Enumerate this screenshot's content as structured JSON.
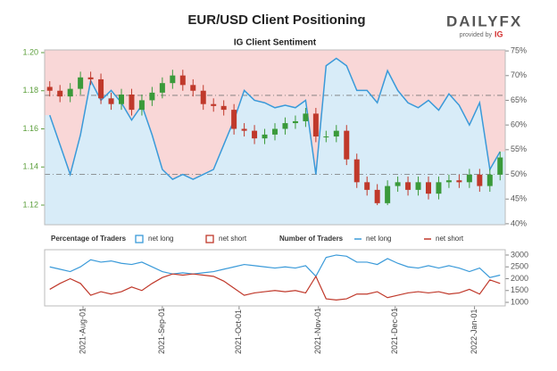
{
  "header": {
    "title": "EUR/USD Client Positioning",
    "logo": "DAILYFX",
    "provided_by": "provided by",
    "provider": "IG"
  },
  "chart_data": [
    {
      "type": "candlestick",
      "title": "IG Client Sentiment",
      "x": [
        "2021-Jul-19",
        "2021-Jul-23",
        "2021-Jul-27",
        "2021-Jul-31",
        "2021-Aug-04",
        "2021-Aug-08",
        "2021-Aug-12",
        "2021-Aug-16",
        "2021-Aug-20",
        "2021-Aug-24",
        "2021-Aug-28",
        "2021-Sep-01",
        "2021-Sep-05",
        "2021-Sep-09",
        "2021-Sep-13",
        "2021-Sep-17",
        "2021-Sep-21",
        "2021-Sep-25",
        "2021-Sep-29",
        "2021-Oct-03",
        "2021-Oct-07",
        "2021-Oct-11",
        "2021-Oct-15",
        "2021-Oct-19",
        "2021-Oct-23",
        "2021-Oct-27",
        "2021-Oct-31",
        "2021-Nov-04",
        "2021-Nov-08",
        "2021-Nov-12",
        "2021-Nov-16",
        "2021-Nov-20",
        "2021-Nov-24",
        "2021-Nov-28",
        "2021-Dec-02",
        "2021-Dec-06",
        "2021-Dec-10",
        "2021-Dec-14",
        "2021-Dec-18",
        "2021-Dec-22",
        "2021-Dec-26",
        "2021-Dec-30",
        "2022-Jan-03",
        "2022-Jan-07",
        "2022-Jan-11"
      ],
      "open": [
        1.182,
        1.18,
        1.177,
        1.181,
        1.187,
        1.186,
        1.176,
        1.173,
        1.178,
        1.17,
        1.175,
        1.179,
        1.184,
        1.188,
        1.183,
        1.18,
        1.173,
        1.172,
        1.17,
        1.16,
        1.159,
        1.155,
        1.157,
        1.16,
        1.163,
        1.164,
        1.168,
        1.156,
        1.156,
        1.159,
        1.144,
        1.132,
        1.128,
        1.121,
        1.13,
        1.132,
        1.128,
        1.132,
        1.126,
        1.132,
        1.133,
        1.132,
        1.136,
        1.13,
        1.136
      ],
      "high": [
        1.185,
        1.183,
        1.184,
        1.19,
        1.19,
        1.189,
        1.179,
        1.181,
        1.181,
        1.178,
        1.182,
        1.187,
        1.191,
        1.191,
        1.186,
        1.183,
        1.176,
        1.175,
        1.173,
        1.163,
        1.162,
        1.16,
        1.163,
        1.166,
        1.167,
        1.171,
        1.171,
        1.159,
        1.162,
        1.162,
        1.147,
        1.135,
        1.131,
        1.133,
        1.135,
        1.135,
        1.135,
        1.135,
        1.135,
        1.136,
        1.136,
        1.139,
        1.139,
        1.139,
        1.148
      ],
      "low": [
        1.177,
        1.174,
        1.174,
        1.178,
        1.183,
        1.173,
        1.17,
        1.17,
        1.167,
        1.167,
        1.172,
        1.176,
        1.181,
        1.18,
        1.177,
        1.17,
        1.169,
        1.167,
        1.157,
        1.156,
        1.152,
        1.152,
        1.154,
        1.157,
        1.16,
        1.161,
        1.153,
        1.153,
        1.153,
        1.141,
        1.129,
        1.125,
        1.12,
        1.12,
        1.127,
        1.125,
        1.125,
        1.123,
        1.123,
        1.129,
        1.129,
        1.129,
        1.127,
        1.127,
        1.133
      ],
      "close": [
        1.18,
        1.177,
        1.181,
        1.187,
        1.186,
        1.176,
        1.173,
        1.178,
        1.17,
        1.175,
        1.179,
        1.184,
        1.188,
        1.183,
        1.18,
        1.173,
        1.172,
        1.17,
        1.16,
        1.159,
        1.155,
        1.157,
        1.16,
        1.163,
        1.164,
        1.168,
        1.156,
        1.156,
        1.159,
        1.144,
        1.132,
        1.128,
        1.121,
        1.13,
        1.132,
        1.128,
        1.132,
        1.126,
        1.132,
        1.133,
        1.132,
        1.136,
        1.13,
        1.136,
        1.145
      ],
      "up_color": "#3a9a3a",
      "down_color": "#c0392b",
      "series": [
        {
          "name": "net long",
          "color": "#3a9ad9",
          "axis": "y2",
          "values": [
            62,
            56,
            50,
            58,
            69,
            65,
            67,
            64.5,
            61,
            64,
            58,
            51,
            49,
            50,
            49,
            50,
            51,
            56,
            61,
            67,
            65,
            64.5,
            63.5,
            64,
            63.5,
            65,
            50,
            72,
            73.5,
            72,
            67,
            67,
            64.5,
            71,
            67,
            64.5,
            63.5,
            65,
            63,
            66.3,
            64,
            60,
            64.5,
            51,
            54.6
          ]
        }
      ],
      "long_fill": "#d8ecf8",
      "short_fill": "#f9d7d7",
      "xlim": [
        "2021-Jul-17",
        "2022-Jan-13"
      ],
      "ylim": [
        1.1097,
        1.2014
      ],
      "yticks": [
        1.12,
        1.14,
        1.16,
        1.18,
        {
          "value": 1.2,
          "label": "1.20"
        }
      ],
      "y2lim": [
        39.8,
        75.2
      ],
      "y2ticks": [
        {
          "value": 40,
          "label": "40%"
        },
        {
          "value": 45,
          "label": "45%"
        },
        {
          "value": 50,
          "label": "50%"
        },
        {
          "value": 55,
          "label": "55%"
        },
        {
          "value": 60,
          "label": "60%"
        },
        {
          "value": 65,
          "label": "65%"
        },
        {
          "value": 70,
          "label": "70%"
        },
        {
          "value": 75,
          "label": "75%"
        }
      ],
      "y2_ref_lines": [
        50,
        66
      ],
      "legend": {
        "title": "Percentage of Traders",
        "entries": [
          {
            "name": "net long",
            "color": "#3a9ad9"
          },
          {
            "name": "net short",
            "color": "#c0392b"
          }
        ]
      }
    },
    {
      "type": "line",
      "x": [
        "2021-Jul-19",
        "2021-Jul-23",
        "2021-Jul-27",
        "2021-Jul-31",
        "2021-Aug-04",
        "2021-Aug-08",
        "2021-Aug-12",
        "2021-Aug-16",
        "2021-Aug-20",
        "2021-Aug-24",
        "2021-Aug-28",
        "2021-Sep-01",
        "2021-Sep-05",
        "2021-Sep-09",
        "2021-Sep-13",
        "2021-Sep-17",
        "2021-Sep-21",
        "2021-Sep-25",
        "2021-Sep-29",
        "2021-Oct-03",
        "2021-Oct-07",
        "2021-Oct-11",
        "2021-Oct-15",
        "2021-Oct-19",
        "2021-Oct-23",
        "2021-Oct-27",
        "2021-Oct-31",
        "2021-Nov-04",
        "2021-Nov-08",
        "2021-Nov-12",
        "2021-Nov-16",
        "2021-Nov-20",
        "2021-Nov-24",
        "2021-Nov-28",
        "2021-Dec-02",
        "2021-Dec-06",
        "2021-Dec-10",
        "2021-Dec-14",
        "2021-Dec-18",
        "2021-Dec-22",
        "2021-Dec-26",
        "2021-Dec-30",
        "2022-Jan-03",
        "2022-Jan-07",
        "2022-Jan-11"
      ],
      "series": [
        {
          "name": "net long",
          "color": "#3a9ad9",
          "values": [
            2500,
            2400,
            2300,
            2500,
            2800,
            2700,
            2750,
            2650,
            2600,
            2700,
            2500,
            2300,
            2200,
            2250,
            2200,
            2250,
            2300,
            2400,
            2500,
            2600,
            2550,
            2500,
            2450,
            2500,
            2450,
            2550,
            2100,
            2900,
            3000,
            2950,
            2700,
            2700,
            2600,
            2850,
            2650,
            2500,
            2450,
            2550,
            2450,
            2550,
            2450,
            2300,
            2450,
            2050,
            2150
          ]
        },
        {
          "name": "net short",
          "color": "#c0392b",
          "values": [
            1550,
            1800,
            2000,
            1800,
            1300,
            1450,
            1350,
            1450,
            1650,
            1500,
            1800,
            2050,
            2200,
            2150,
            2200,
            2150,
            2100,
            1900,
            1600,
            1300,
            1400,
            1450,
            1500,
            1450,
            1500,
            1400,
            2100,
            1150,
            1100,
            1150,
            1350,
            1350,
            1450,
            1200,
            1300,
            1400,
            1450,
            1400,
            1450,
            1350,
            1400,
            1550,
            1350,
            1950,
            1800
          ]
        }
      ],
      "xlim": [
        "2021-Jul-17",
        "2022-Jan-13"
      ],
      "xticks": [
        "2021-Aug-01",
        "2021-Sep-01",
        "2021-Oct-01",
        "2021-Nov-01",
        "2021-Dec-01",
        "2022-Jan-01"
      ],
      "y2lim": [
        850,
        3225
      ],
      "y2ticks": [
        1000,
        1500,
        2000,
        2500,
        3000
      ],
      "legend": {
        "title": "Number of Traders"
      }
    }
  ]
}
